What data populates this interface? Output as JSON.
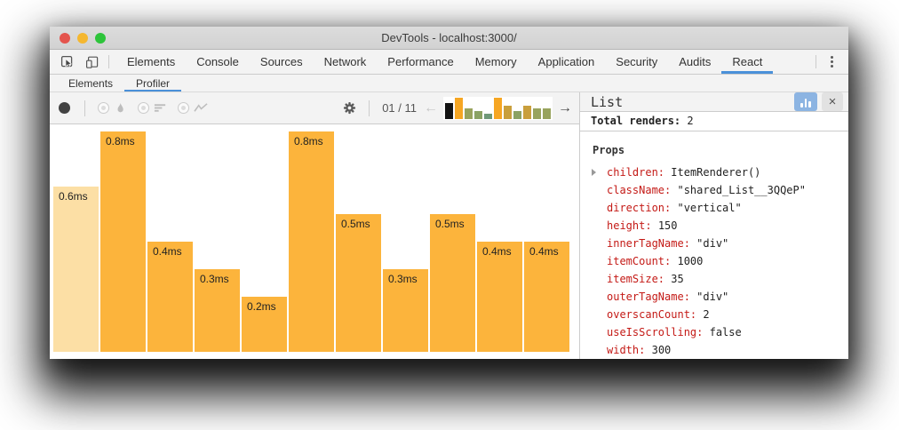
{
  "window": {
    "title": "DevTools - localhost:3000/"
  },
  "traffic_lights": [
    "close",
    "minimize",
    "zoom"
  ],
  "tabs": {
    "items": [
      "Elements",
      "Console",
      "Sources",
      "Network",
      "Performance",
      "Memory",
      "Application",
      "Security",
      "Audits",
      "React"
    ],
    "active": "React"
  },
  "subtabs": {
    "items": [
      "Elements",
      "Profiler"
    ],
    "active": "Profiler"
  },
  "toolbar": {
    "commit_counter": "01 / 11",
    "prev_arrow": "←",
    "next_arrow": "→",
    "icons": [
      "record",
      "flamegraph",
      "ranked",
      "interactions",
      "settings-gear",
      "prev-commit",
      "next-commit"
    ]
  },
  "panel": {
    "title": "List",
    "total_renders_label": "Total renders:",
    "total_renders_value": "2",
    "props_label": "Props",
    "close_label": "×",
    "props": [
      {
        "key": "children",
        "value": "ItemRenderer()",
        "expandable": true
      },
      {
        "key": "className",
        "value": "\"shared_List__3QQeP\""
      },
      {
        "key": "direction",
        "value": "\"vertical\""
      },
      {
        "key": "height",
        "value": "150"
      },
      {
        "key": "innerTagName",
        "value": "\"div\""
      },
      {
        "key": "itemCount",
        "value": "1000"
      },
      {
        "key": "itemSize",
        "value": "35"
      },
      {
        "key": "outerTagName",
        "value": "\"div\""
      },
      {
        "key": "overscanCount",
        "value": "2"
      },
      {
        "key": "useIsScrolling",
        "value": "false"
      },
      {
        "key": "width",
        "value": "300"
      }
    ]
  },
  "chart_data": {
    "type": "bar",
    "values": [
      0.6,
      0.8,
      0.4,
      0.3,
      0.2,
      0.8,
      0.5,
      0.3,
      0.5,
      0.4,
      0.4
    ],
    "labels": [
      "0.6ms",
      "0.8ms",
      "0.4ms",
      "0.3ms",
      "0.2ms",
      "0.8ms",
      "0.5ms",
      "0.3ms",
      "0.5ms",
      "0.4ms",
      "0.4ms"
    ],
    "unit": "ms",
    "ylim": [
      0,
      0.8
    ],
    "selected_index": 0,
    "legend": "none",
    "grid": false,
    "bar_color": "#fcb43c",
    "selected_bar_color": "#fcdfa5",
    "minimap": {
      "selected_color": "#141414",
      "value_colors": {
        "0.8": "#f6a623",
        "0.6": "#d8a437",
        "0.5": "#c99f3c",
        "0.4": "#98a35d",
        "0.3": "#8ba263",
        "0.2": "#6f9878"
      }
    }
  },
  "colors": {
    "accent_blue": "#4a90d9",
    "toolbar_bg": "#f3f3f3",
    "border": "#cccccc",
    "prop_key_red": "#c41a16"
  }
}
